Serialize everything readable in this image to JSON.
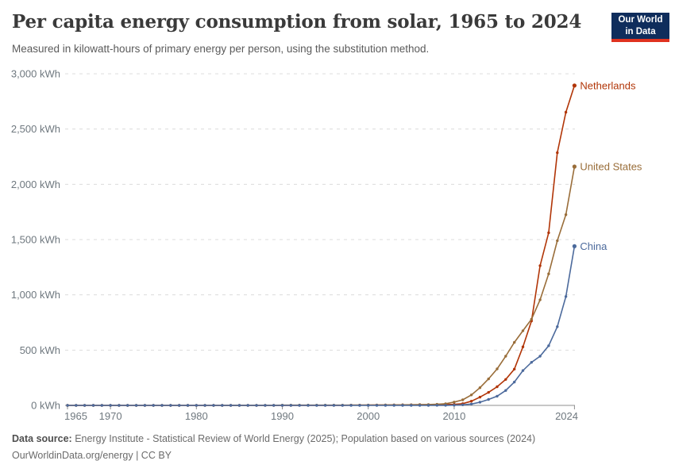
{
  "header": {
    "title": "Per capita energy consumption from solar, 1965 to 2024",
    "subtitle": "Measured in kilowatt-hours of primary energy per person, using the substitution method."
  },
  "logo": {
    "line1": "Our World",
    "line2": "in Data",
    "bg_color": "#0f2d5c",
    "accent_color": "#e0321f"
  },
  "footer": {
    "source_label": "Data source:",
    "source_text": " Energy Institute - Statistical Review of World Energy (2025); Population based on various sources (2024)",
    "link_text": "OurWorldinData.org/energy | CC BY"
  },
  "chart_data": {
    "type": "line",
    "title": "Per capita energy consumption from solar, 1965 to 2024",
    "xlabel": "",
    "ylabel": "kWh per person (substitution method)",
    "xlim": [
      1965,
      2024
    ],
    "ylim": [
      0,
      3000
    ],
    "grid": "horizontal-dashed",
    "legend_position": "line-end-labels",
    "xticks": [
      1965,
      1970,
      1980,
      1990,
      2000,
      2010,
      2024
    ],
    "xtick_labels": [
      "1965",
      "1970",
      "1980",
      "1990",
      "2000",
      "2010",
      "2024"
    ],
    "yticks": [
      0,
      500,
      1000,
      1500,
      2000,
      2500,
      3000
    ],
    "ytick_labels": [
      "0 kWh",
      "500 kWh",
      "1,000 kWh",
      "1,500 kWh",
      "2,000 kWh",
      "2,500 kWh",
      "3,000 kWh"
    ],
    "x": [
      1965,
      1966,
      1967,
      1968,
      1969,
      1970,
      1971,
      1972,
      1973,
      1974,
      1975,
      1976,
      1977,
      1978,
      1979,
      1980,
      1981,
      1982,
      1983,
      1984,
      1985,
      1986,
      1987,
      1988,
      1989,
      1990,
      1991,
      1992,
      1993,
      1994,
      1995,
      1996,
      1997,
      1998,
      1999,
      2000,
      2001,
      2002,
      2003,
      2004,
      2005,
      2006,
      2007,
      2008,
      2009,
      2010,
      2011,
      2012,
      2013,
      2014,
      2015,
      2016,
      2017,
      2018,
      2019,
      2020,
      2021,
      2022,
      2023,
      2024
    ],
    "series": [
      {
        "name": "Netherlands",
        "color": "#b13507",
        "values": [
          0,
          0,
          0,
          0,
          0,
          0,
          0,
          0,
          0,
          0,
          0,
          0,
          0,
          0,
          0,
          0,
          0,
          0,
          0,
          0,
          0,
          0,
          0,
          0,
          0,
          0,
          0,
          1,
          1,
          1,
          1,
          1,
          1,
          2,
          2,
          2,
          3,
          3,
          4,
          5,
          5,
          6,
          6,
          7,
          8,
          9,
          16,
          38,
          75,
          118,
          169,
          235,
          328,
          530,
          764,
          1264,
          1562,
          2286,
          2652,
          2894
        ]
      },
      {
        "name": "United States",
        "color": "#996d39",
        "values": [
          0,
          0,
          0,
          0,
          0,
          0,
          0,
          0,
          0,
          0,
          0,
          0,
          0,
          0,
          0,
          0,
          0,
          0,
          0,
          1,
          1,
          1,
          1,
          1,
          1,
          2,
          2,
          2,
          2,
          2,
          2,
          2,
          2,
          2,
          2,
          3,
          3,
          4,
          4,
          5,
          6,
          7,
          8,
          10,
          15,
          30,
          50,
          95,
          160,
          240,
          330,
          445,
          570,
          675,
          780,
          955,
          1190,
          1490,
          1725,
          2160
        ]
      },
      {
        "name": "China",
        "color": "#4c6a9c",
        "values": [
          0,
          0,
          0,
          0,
          0,
          0,
          0,
          0,
          0,
          0,
          0,
          0,
          0,
          0,
          0,
          0,
          0,
          0,
          0,
          0,
          0,
          0,
          0,
          0,
          0,
          0,
          0,
          0,
          0,
          0,
          0,
          0,
          0,
          0,
          0,
          0,
          0,
          0,
          0,
          0,
          0,
          0,
          0,
          1,
          1,
          2,
          5,
          12,
          29,
          54,
          83,
          135,
          211,
          315,
          390,
          445,
          540,
          712,
          985,
          1440
        ]
      }
    ]
  }
}
